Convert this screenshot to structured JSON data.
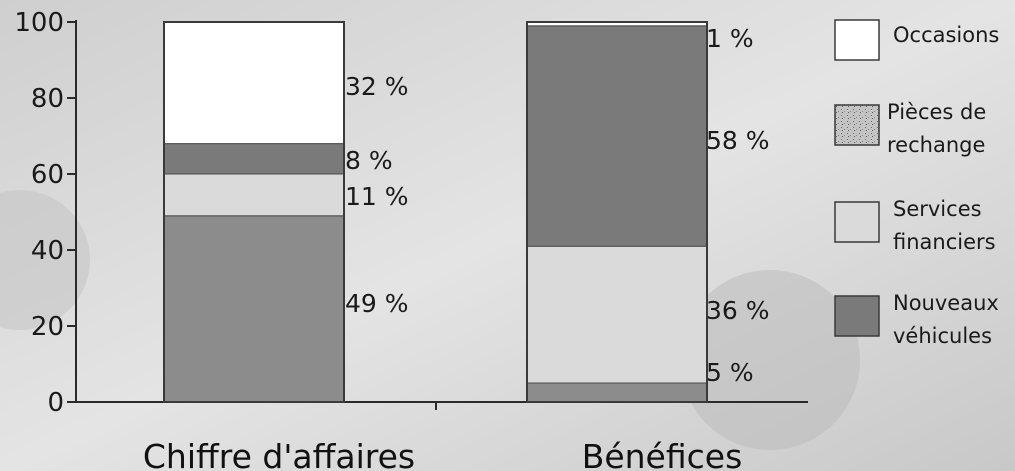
{
  "chart_data": {
    "type": "bar",
    "stacked": true,
    "ylim": [
      0,
      100
    ],
    "yticks": [
      0,
      20,
      40,
      60,
      80,
      100
    ],
    "categories": [
      "Chiffre d'affaires",
      "Bénéfices"
    ],
    "series": [
      {
        "name": "Nouveaux véhicules",
        "values": [
          49,
          5
        ],
        "labels": [
          "49 %",
          "5 %"
        ],
        "color": "#8c8c8c"
      },
      {
        "name": "Services financiers",
        "values": [
          11,
          36
        ],
        "labels": [
          "11 %",
          "36 %"
        ],
        "color": "#dadada"
      },
      {
        "name": "Pièces de rechange",
        "values": [
          8,
          58
        ],
        "labels": [
          "8 %",
          "58 %"
        ],
        "color": "#7a7a7a"
      },
      {
        "name": "Occasions",
        "values": [
          32,
          1
        ],
        "labels": [
          "32 %",
          "1 %"
        ],
        "color": "#ffffff"
      }
    ],
    "legend": {
      "placement": "right",
      "entries": [
        {
          "lines": [
            "Occasions"
          ],
          "color": "#ffffff"
        },
        {
          "lines": [
            "Pièces de",
            "rechange"
          ],
          "color": "#a8a8a8"
        },
        {
          "lines": [
            "Services",
            "financiers"
          ],
          "color": "#dadada"
        },
        {
          "lines": [
            "Nouveaux",
            "véhicules"
          ],
          "color": "#7a7a7a"
        }
      ]
    }
  }
}
